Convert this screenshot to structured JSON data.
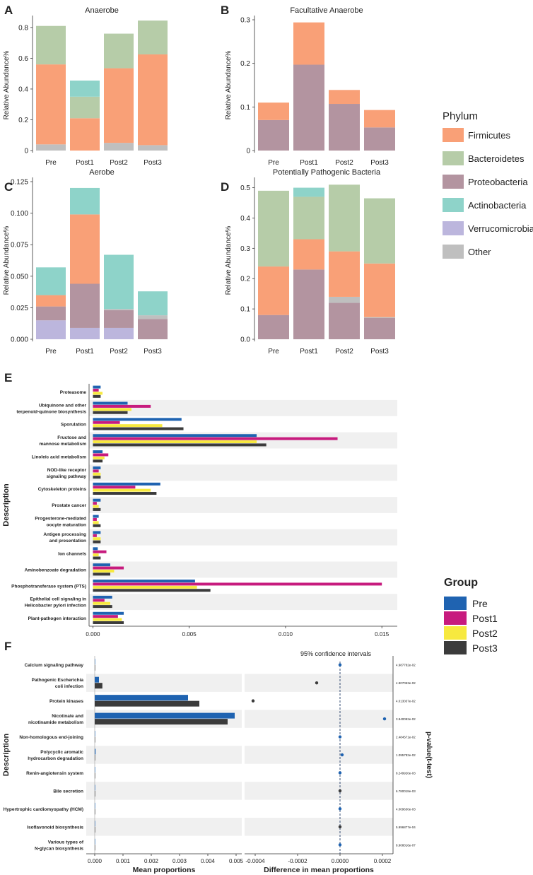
{
  "colors": {
    "phylum": {
      "Firmicutes": "#F9A077",
      "Bacteroidetes": "#B6CCA8",
      "Proteobacteria": "#B394A0",
      "Actinobacteria": "#8ED3C9",
      "Verrucomicrobia": "#BCB6DD",
      "Other": "#BFBFBF"
    },
    "group": {
      "Pre": "#1F63B1",
      "Post1": "#C71B7E",
      "Post2": "#F7E93F",
      "Post3": "#3B3B3B"
    }
  },
  "legends": {
    "phylum": {
      "title": "Phylum",
      "items": [
        "Firmicutes",
        "Bacteroidetes",
        "Proteobacteria",
        "Actinobacteria",
        "Verrucomicrobia",
        "Other"
      ]
    },
    "group": {
      "title": "Group",
      "items": [
        "Pre",
        "Post1",
        "Post2",
        "Post3"
      ]
    }
  },
  "chart_data": [
    {
      "panel": "A",
      "type": "bar",
      "stacked": true,
      "title": "Anaerobe",
      "ylabel": "Relative Abundance%",
      "ylim": [
        0,
        0.85
      ],
      "yticks": [
        "0",
        "0.2",
        "0.4",
        "0.6",
        "0.8"
      ],
      "ytick_values": [
        0,
        0.2,
        0.4,
        0.6,
        0.8
      ],
      "categories": [
        "Pre",
        "Post1",
        "Post2",
        "Post3"
      ],
      "series": [
        {
          "name": "Other",
          "values": [
            0.04,
            0.0,
            0.05,
            0.035
          ]
        },
        {
          "name": "Firmicutes",
          "values": [
            0.52,
            0.21,
            0.485,
            0.59
          ]
        },
        {
          "name": "Bacteroidetes",
          "values": [
            0.25,
            0.14,
            0.225,
            0.22
          ]
        },
        {
          "name": "Actinobacteria",
          "values": [
            0,
            0.105,
            0,
            0
          ]
        }
      ]
    },
    {
      "panel": "B",
      "type": "bar",
      "stacked": true,
      "title": "Facultative Anaerobe",
      "ylabel": "Relative Abundance%",
      "ylim": [
        0,
        0.3
      ],
      "yticks": [
        "0",
        "0.1",
        "0.2",
        "0.3"
      ],
      "ytick_values": [
        0,
        0.1,
        0.2,
        0.3
      ],
      "categories": [
        "Pre",
        "Post1",
        "Post2",
        "Post3"
      ],
      "series": [
        {
          "name": "Proteobacteria",
          "values": [
            0.07,
            0.197,
            0.107,
            0.053
          ]
        },
        {
          "name": "Firmicutes",
          "values": [
            0.04,
            0.097,
            0.032,
            0.04
          ]
        }
      ]
    },
    {
      "panel": "C",
      "type": "bar",
      "stacked": true,
      "title": "Aerobe",
      "ylabel": "Relative Abundance%",
      "ylim": [
        0,
        0.125
      ],
      "yticks": [
        "0.000",
        "0.025",
        "0.050",
        "0.075",
        "0.100",
        "0.125"
      ],
      "ytick_values": [
        0,
        0.025,
        0.05,
        0.075,
        0.1,
        0.125
      ],
      "categories": [
        "Pre",
        "Post1",
        "Post2",
        "Post3"
      ],
      "series": [
        {
          "name": "Verrucomicrobia",
          "values": [
            0.015,
            0.009,
            0.009,
            0
          ]
        },
        {
          "name": "Proteobacteria",
          "values": [
            0.011,
            0.035,
            0.014,
            0.016
          ]
        },
        {
          "name": "Other",
          "values": [
            0,
            0,
            0.001,
            0.003
          ]
        },
        {
          "name": "Firmicutes",
          "values": [
            0.009,
            0.055,
            0,
            0
          ]
        },
        {
          "name": "Actinobacteria",
          "values": [
            0.022,
            0.021,
            0.043,
            0.019
          ]
        }
      ]
    },
    {
      "panel": "D",
      "type": "bar",
      "stacked": true,
      "title": "Potentially Pathogenic Bacteria",
      "ylabel": "Relative Abundance%",
      "ylim": [
        0,
        0.52
      ],
      "yticks": [
        "0.0",
        "0.1",
        "0.2",
        "0.3",
        "0.4",
        "0.5"
      ],
      "ytick_values": [
        0,
        0.1,
        0.2,
        0.3,
        0.4,
        0.5
      ],
      "categories": [
        "Pre",
        "Post1",
        "Post2",
        "Post3"
      ],
      "series": [
        {
          "name": "Proteobacteria",
          "values": [
            0.08,
            0.23,
            0.12,
            0.07
          ]
        },
        {
          "name": "Other",
          "values": [
            0,
            0,
            0.02,
            0.003
          ]
        },
        {
          "name": "Firmicutes",
          "values": [
            0.16,
            0.1,
            0.15,
            0.177
          ]
        },
        {
          "name": "Bacteroidetes",
          "values": [
            0.25,
            0.14,
            0.22,
            0.215
          ]
        },
        {
          "name": "Actinobacteria",
          "values": [
            0,
            0.03,
            0,
            0
          ]
        }
      ]
    },
    {
      "panel": "E",
      "type": "bar",
      "orientation": "horizontal",
      "grouped": true,
      "ylabel": "Description",
      "xlim": [
        -0.0002,
        0.0158
      ],
      "xticks": [
        "0.000",
        "0.005",
        "0.010",
        "0.015"
      ],
      "xtick_values": [
        0,
        0.005,
        0.01,
        0.015
      ],
      "groups": [
        "Pre",
        "Post1",
        "Post2",
        "Post3"
      ],
      "categories": [
        "Proteasome",
        "Ubiquinone and other\nterpenoid-quinone biosynthesis",
        "Sporulation",
        "Fructose and\nmannose metabolism",
        "Linoleic acid metabolism",
        "NOD-like receptor\nsignaling pathway",
        "Cytoskeleton proteins",
        "Prostate cancer",
        "Progesterone-mediated\noocyte maturation",
        "Antigen processing\nand presentation",
        "Ion channels",
        "Aminobenzoate degradation",
        "Phosphotransferase system (PTS)",
        "Epithelial cell signaling in\nHelicobacter pylori infection",
        "Plant-pathogen interaction"
      ],
      "series": [
        {
          "name": "Pre",
          "values": [
            0.0004,
            0.0018,
            0.0046,
            0.0085,
            0.0005,
            0.0004,
            0.0035,
            0.0004,
            0.0003,
            0.0004,
            0.00025,
            0.0009,
            0.0053,
            0.001,
            0.0016
          ]
        },
        {
          "name": "Post1",
          "values": [
            0.0003,
            0.003,
            0.0014,
            0.0127,
            0.0008,
            0.0003,
            0.0022,
            0.0002,
            0.0002,
            0.0002,
            0.0007,
            0.0016,
            0.015,
            0.0006,
            0.0013
          ]
        },
        {
          "name": "Post2",
          "values": [
            0.0005,
            0.002,
            0.0036,
            0.0085,
            0.0006,
            0.0004,
            0.003,
            0.0003,
            0.0003,
            0.0004,
            0.0003,
            0.0011,
            0.0054,
            0.0009,
            0.0015
          ]
        },
        {
          "name": "Post3",
          "values": [
            0.0004,
            0.0018,
            0.0047,
            0.009,
            0.0005,
            0.0004,
            0.0033,
            0.0004,
            0.0004,
            0.0004,
            0.0004,
            0.0009,
            0.0061,
            0.001,
            0.0016
          ]
        }
      ]
    },
    {
      "panel": "F",
      "type": "bar",
      "orientation": "horizontal",
      "grouped": true,
      "ylabel": "Description",
      "xlabel": "Mean proportions",
      "xlim": [
        -0.0003,
        0.0052
      ],
      "xticks": [
        "0.000",
        "0.001",
        "0.002",
        "0.003",
        "0.004",
        "0.005"
      ],
      "xtick_values": [
        0,
        0.001,
        0.002,
        0.003,
        0.004,
        0.005
      ],
      "groups": [
        "Pre",
        "Post3"
      ],
      "categories": [
        "Calcium signaling pathway",
        "Pathogenic Escherichia\ncoli infection",
        "Protein kinases",
        "Nicotinate and\nnicotinamide metabolism",
        "Non-homologous end-joining",
        "Polycyclic aromatic\nhydrocarbon degradation",
        "Renin-angiotensin system",
        "Bile secretion",
        "Hypertrophic cardiomyopathy (HCM)",
        "Isoflavonoid biosynthesis",
        "Various types of\nN-glycan biosynthesis"
      ],
      "series": [
        {
          "name": "Pre",
          "values": [
            1e-05,
            0.00015,
            0.0033,
            0.00495,
            1e-05,
            3e-05,
            1e-05,
            1e-05,
            1e-05,
            1e-05,
            1e-05
          ]
        },
        {
          "name": "Post3",
          "values": [
            1e-05,
            0.00027,
            0.0037,
            0.0047,
            1e-05,
            1e-05,
            1e-05,
            1e-05,
            1e-05,
            1e-05,
            1e-05
          ]
        }
      ],
      "ci_title": "95% confidence intervals",
      "ci_xlabel": "Difference in mean proportions",
      "ci_xlim": [
        -0.00045,
        0.00025
      ],
      "ci_xticks": [
        "-0.0004",
        "-0.0002",
        "0.0000",
        "0.0002"
      ],
      "ci_xtick_values": [
        -0.0004,
        -0.0002,
        0,
        0.0002
      ],
      "differences": [
        0.0,
        -0.00011,
        -0.00041,
        0.00021,
        0.0,
        1e-05,
        0.0,
        0.0,
        0.0,
        0.0,
        0.0
      ],
      "diff_colors": [
        "#1F63B1",
        "#3B3B3B",
        "#3B3B3B",
        "#1F63B1",
        "#1F63B1",
        "#1F63B1",
        "#1F63B1",
        "#3B3B3B",
        "#1F63B1",
        "#3B3B3B",
        "#1F63B1"
      ],
      "pvalue_label": "p-value(t-test)",
      "pvalues": [
        "4.987782e-02",
        "4.907053e-02",
        "4.013037e-02",
        "3.940092e-02",
        "2.484571e-02",
        "1.095782e-02",
        "8.249920e-03",
        "6.780018e-03",
        "4.009630e-03",
        "5.996877e-04",
        "8.908016e-07"
      ]
    }
  ],
  "panel_labels": [
    "A",
    "B",
    "C",
    "D",
    "E",
    "F"
  ]
}
